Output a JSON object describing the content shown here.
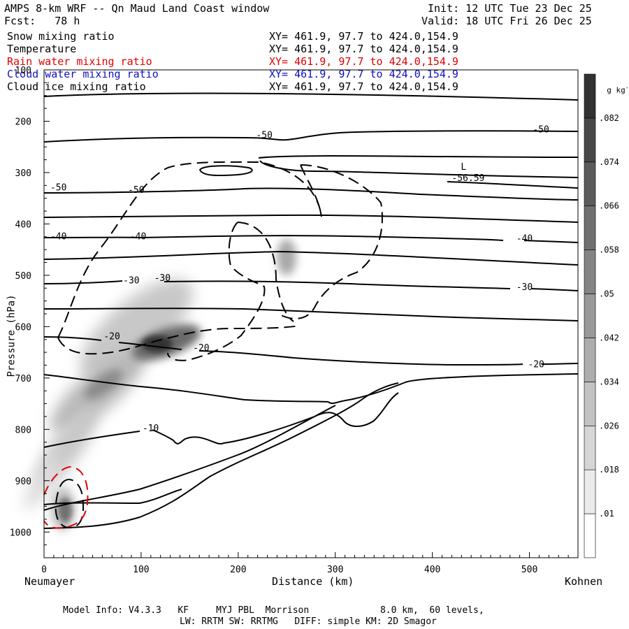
{
  "header": {
    "title": "AMPS 8-km WRF -- Qn Maud Land Coast window",
    "init": "Init: 12 UTC Tue 23 Dec 25",
    "fcst": "Fcst:   78 h",
    "valid": "Valid: 18 UTC Fri 26 Dec 25"
  },
  "fields": [
    {
      "label": "Snow mixing ratio",
      "xy": "XY= 461.9, 97.7 to 424.0,154.9",
      "color": "#000000"
    },
    {
      "label": "Temperature",
      "xy": "XY= 461.9, 97.7 to 424.0,154.9",
      "color": "#000000"
    },
    {
      "label": "Rain water mixing ratio",
      "xy": "XY= 461.9, 97.7 to 424.0,154.9",
      "color": "#e00000"
    },
    {
      "label": "Cloud water mixing ratio",
      "xy": "XY= 461.9, 97.7 to 424.0,154.9",
      "color": "#1010c0"
    },
    {
      "label": "Cloud ice mixing ratio",
      "xy": "XY= 461.9, 97.7 to 424.0,154.9",
      "color": "#000000"
    }
  ],
  "footer": {
    "line1": "Model Info: V4.3.3   KF     MYJ PBL  Morrison             8.0 km,  60 levels,",
    "line2": "LW: RRTM SW: RRTMG   DIFF: simple KM: 2D Smagor"
  },
  "chart_data": {
    "type": "contour",
    "xlabel": "Distance (km)",
    "ylabel": "Pressure (hPa)",
    "x_left_label": "Neumayer",
    "x_right_label": "Kohnen",
    "xlim": [
      0,
      550
    ],
    "ylim": [
      1050,
      100
    ],
    "x_ticks": [
      0,
      100,
      200,
      300,
      400,
      500
    ],
    "y_ticks": [
      100,
      200,
      300,
      400,
      500,
      600,
      700,
      800,
      900,
      1000
    ],
    "colorbar": {
      "unit": "g kg",
      "unit_exp": "-1",
      "ticks": [
        ".01",
        ".018",
        ".026",
        ".034",
        ".042",
        ".05",
        ".058",
        ".066",
        ".074",
        ".082"
      ]
    },
    "min_label": {
      "letter": "L",
      "value": "-56.59",
      "x": 420,
      "pressure": 312
    },
    "temperature_contour_labels": [
      {
        "text": "-50",
        "x": 5,
        "pressure": 328
      },
      {
        "text": "-50",
        "x": 85,
        "pressure": 333
      },
      {
        "text": "-50",
        "x": 217,
        "pressure": 226
      },
      {
        "text": "-50",
        "x": 502,
        "pressure": 215
      },
      {
        "text": "-40",
        "x": 5,
        "pressure": 423
      },
      {
        "text": "-40",
        "x": 87,
        "pressure": 423
      },
      {
        "text": "-40",
        "x": 485,
        "pressure": 427
      },
      {
        "text": "-30",
        "x": 80,
        "pressure": 509
      },
      {
        "text": "-30",
        "x": 112,
        "pressure": 504
      },
      {
        "text": "-30",
        "x": 485,
        "pressure": 522
      },
      {
        "text": "-20",
        "x": 60,
        "pressure": 618
      },
      {
        "text": "-20",
        "x": 152,
        "pressure": 640
      },
      {
        "text": "-20",
        "x": 497,
        "pressure": 672
      },
      {
        "text": "-10",
        "x": 100,
        "pressure": 797
      }
    ]
  }
}
